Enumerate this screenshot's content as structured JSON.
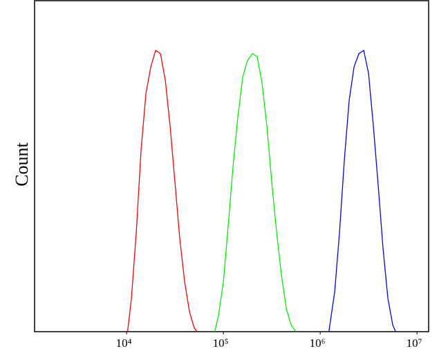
{
  "chart_data": {
    "type": "line",
    "y_label": "Count",
    "log_x": true,
    "xlim": [
      1120,
      13200000
    ],
    "ylim": [
      0,
      100
    ],
    "xticks": [
      {
        "value": 10000,
        "label": "10⁴"
      },
      {
        "value": 100000,
        "label": "10⁵"
      },
      {
        "value": 1000000,
        "label": "10⁶"
      },
      {
        "value": 10000000,
        "label": "10⁷"
      }
    ],
    "series": [
      {
        "color": "#ff0000",
        "x": [
          10233,
          11220,
          12589,
          14125,
          15849,
          17783,
          19953,
          22387,
          25119,
          28184,
          31623,
          35481,
          39811,
          44668,
          50119,
          53703
        ],
        "values": [
          0,
          10,
          30,
          55,
          72,
          80,
          85,
          84,
          76,
          62,
          45,
          28,
          15,
          6,
          1,
          0
        ]
      },
      {
        "color": "#00ee00",
        "x": [
          81283,
          89125,
          100000,
          112202,
          125893,
          141254,
          158489,
          177828,
          199526,
          223872,
          251189,
          281838,
          316228,
          354813,
          398107,
          446684,
          501187,
          562341
        ],
        "values": [
          0,
          5,
          15,
          32,
          50,
          65,
          77,
          82,
          84,
          83,
          75,
          62,
          45,
          30,
          17,
          7,
          2,
          0
        ]
      },
      {
        "color": "#0000ff",
        "x": [
          1230269,
          1412538,
          1584893,
          1778279,
          1995262,
          2238721,
          2511886,
          2818383,
          3162278,
          3548134,
          3981072,
          4466836,
          5011872,
          5623413,
          6025596
        ],
        "values": [
          0,
          12,
          30,
          52,
          70,
          80,
          84,
          85,
          78,
          62,
          44,
          25,
          10,
          2,
          0
        ]
      }
    ]
  }
}
